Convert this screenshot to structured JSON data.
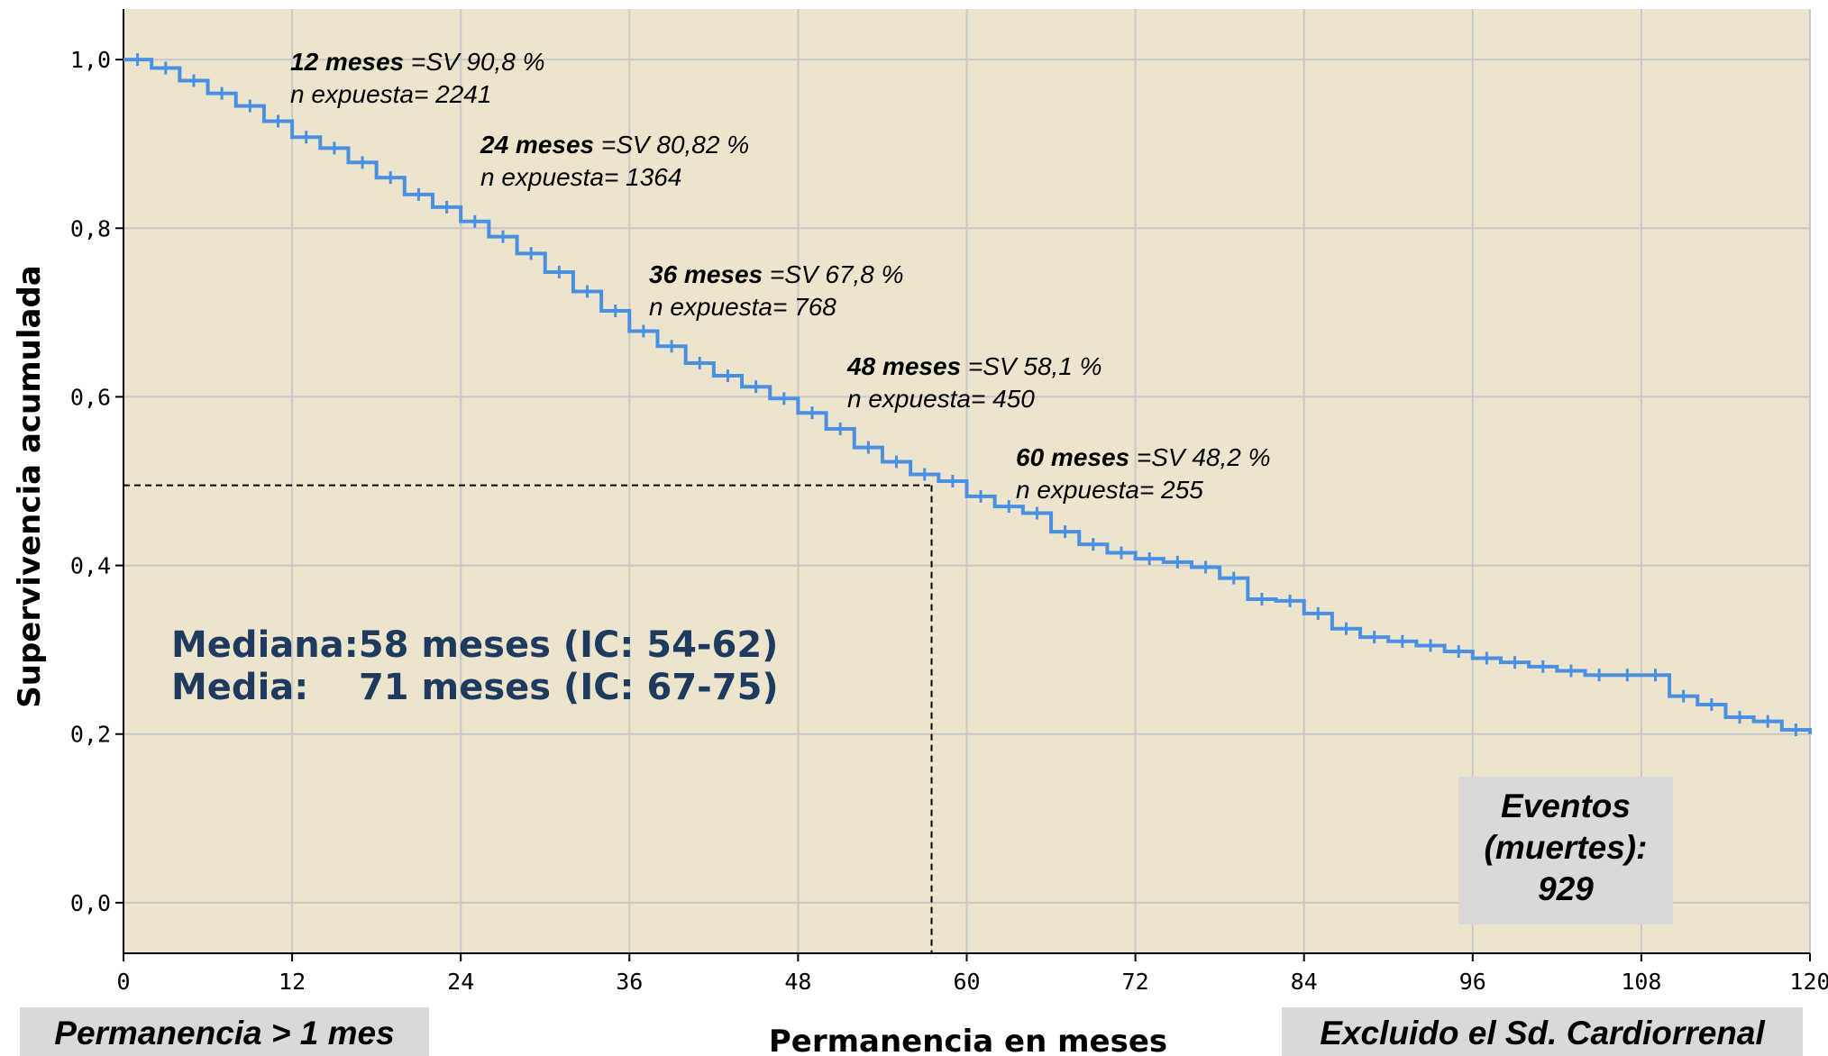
{
  "chart_data": {
    "type": "line",
    "xlabel": "Permanencia en meses",
    "ylabel": "Supervivencia acumulada",
    "xlim": [
      0,
      120
    ],
    "ylim": [
      -0.06,
      1.06
    ],
    "x_ticks": [
      "0",
      "12",
      "24",
      "36",
      "48",
      "60",
      "72",
      "84",
      "96",
      "108",
      "120"
    ],
    "y_ticks": [
      "0,0",
      "0,2",
      "0,4",
      "0,6",
      "0,8",
      "1,0"
    ],
    "grid": true,
    "series": [
      {
        "color": "#4a90e2",
        "x": [
          0,
          2,
          4,
          6,
          8,
          10,
          12,
          14,
          16,
          18,
          20,
          22,
          24,
          26,
          28,
          30,
          32,
          34,
          36,
          38,
          40,
          42,
          44,
          46,
          48,
          50,
          52,
          54,
          56,
          58,
          60,
          62,
          64,
          66,
          68,
          70,
          72,
          74,
          76,
          78,
          80,
          82,
          84,
          86,
          88,
          90,
          92,
          94,
          96,
          98,
          100,
          102,
          104,
          106,
          108,
          110,
          112,
          114,
          116,
          118,
          120
        ],
        "y": [
          1.0,
          0.99,
          0.975,
          0.96,
          0.945,
          0.927,
          0.908,
          0.895,
          0.878,
          0.86,
          0.84,
          0.825,
          0.808,
          0.79,
          0.77,
          0.748,
          0.725,
          0.702,
          0.678,
          0.66,
          0.64,
          0.625,
          0.612,
          0.598,
          0.581,
          0.562,
          0.54,
          0.523,
          0.508,
          0.5,
          0.482,
          0.47,
          0.462,
          0.44,
          0.425,
          0.415,
          0.408,
          0.404,
          0.398,
          0.385,
          0.36,
          0.358,
          0.343,
          0.325,
          0.315,
          0.31,
          0.305,
          0.298,
          0.29,
          0.285,
          0.28,
          0.275,
          0.27,
          0.27,
          0.27,
          0.245,
          0.235,
          0.22,
          0.215,
          0.205,
          0.2
        ]
      }
    ],
    "annotations": [
      {
        "bold": "12 meses",
        "text": " =SV 90,8 %",
        "line2": "n expuesta= 2241"
      },
      {
        "bold": "24 meses",
        "text": " =SV 80,82 %",
        "line2": "n expuesta= 1364"
      },
      {
        "bold": "36 meses",
        "text": " =SV 67,8 %",
        "line2": "n expuesta= 768"
      },
      {
        "bold": "48 meses",
        "text": " =SV 58,1 %",
        "line2": "n expuesta= 450"
      },
      {
        "bold": "60 meses",
        "text": " =SV 48,2 %",
        "line2": "n expuesta= 255"
      }
    ],
    "median_marker": {
      "x": 57.5,
      "y": 0.495
    },
    "summary": [
      "Mediana:58 meses (IC: 54-62)",
      "Media:    71 meses (IC: 67-75)"
    ],
    "events": [
      "Eventos",
      "(muertes):",
      "929"
    ]
  },
  "footer": {
    "left_label": "Permanencia > 1 mes",
    "right_label": "Excluido el Sd. Cardiorrenal"
  },
  "colors": {
    "plot_bg": "#ede4cd",
    "grid": "#c8c8c8",
    "curve": "#4a90e2",
    "summary_text": "#1f3a5f",
    "box_bg": "#d9d9d9"
  }
}
